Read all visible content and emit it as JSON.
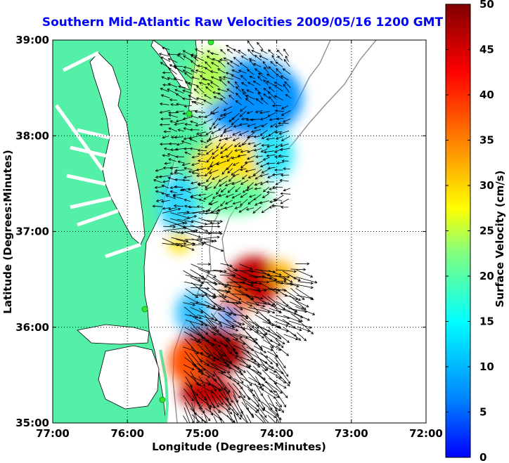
{
  "title": "Southern Mid-Atlantic Raw Velocities 2009/05/16 1200 GMT",
  "xlabel": "Longitude (Degrees:Minutes)",
  "ylabel": "Latitude (Degrees:Minutes)",
  "colorbar_label": "Surface Velocity (cm/s)",
  "x_ticks": [
    "77:00",
    "76:00",
    "75:00",
    "74:00",
    "73:00",
    "72:00"
  ],
  "y_ticks": [
    "39:00",
    "38:00",
    "37:00",
    "36:00",
    "35:00"
  ],
  "colorbar_ticks": [
    "0",
    "5",
    "10",
    "15",
    "20",
    "25",
    "30",
    "35",
    "40",
    "45",
    "50"
  ],
  "colors": {
    "land": "#55f0a8",
    "title": "#0000ff",
    "grid": "#000000"
  },
  "chart_data": {
    "type": "heatmap",
    "x_range": [
      -77,
      -72
    ],
    "y_range": [
      35,
      39
    ],
    "color_range": [
      0,
      50
    ],
    "grid": true
  }
}
